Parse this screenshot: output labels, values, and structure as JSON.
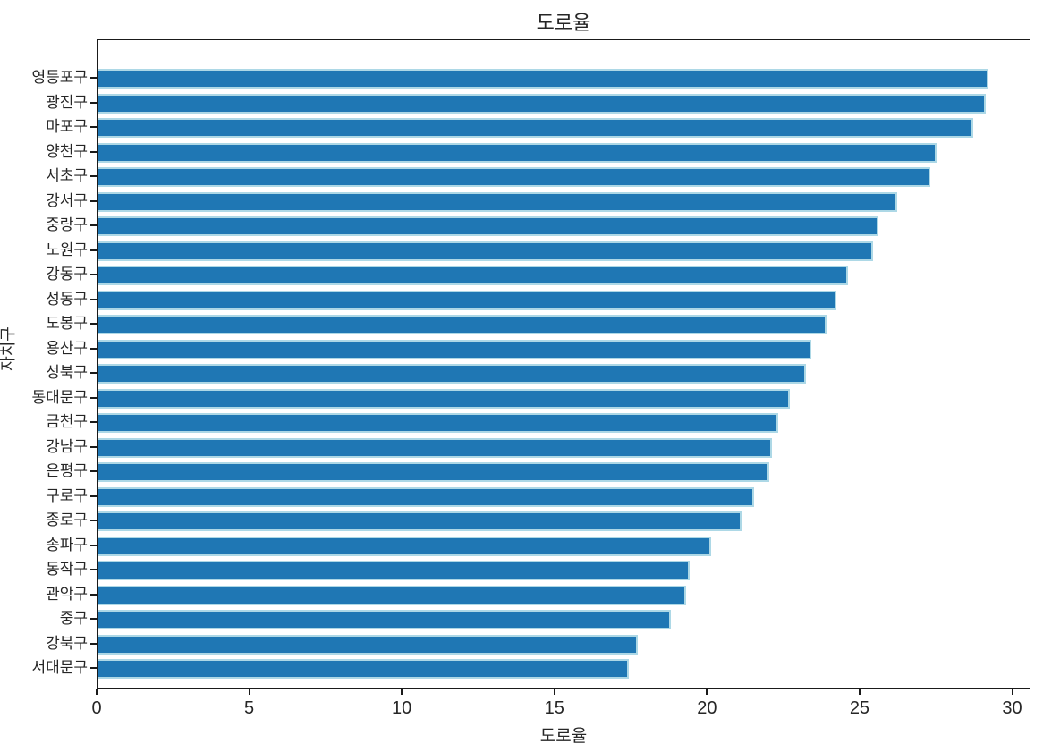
{
  "chart_data": {
    "type": "bar",
    "orientation": "horizontal",
    "title": "도로율",
    "xlabel": "도로율",
    "ylabel": "자치구",
    "xlim": [
      0,
      30.6
    ],
    "xticks": [
      0,
      5,
      10,
      15,
      20,
      25,
      30
    ],
    "grid": false,
    "legend": null,
    "bar_color": "#1f77b4",
    "bar_edge_color": "#add8e6",
    "categories": [
      "영등포구",
      "광진구",
      "마포구",
      "양천구",
      "서초구",
      "강서구",
      "중랑구",
      "노원구",
      "강동구",
      "성동구",
      "도봉구",
      "용산구",
      "성북구",
      "동대문구",
      "금천구",
      "강남구",
      "은평구",
      "구로구",
      "종로구",
      "송파구",
      "동작구",
      "관악구",
      "중구",
      "강북구",
      "서대문구"
    ],
    "values": [
      29.2,
      29.1,
      28.7,
      27.5,
      27.3,
      26.2,
      25.6,
      25.4,
      24.6,
      24.2,
      23.9,
      23.4,
      23.2,
      22.7,
      22.3,
      22.1,
      22.0,
      21.5,
      21.1,
      20.1,
      19.4,
      19.3,
      18.8,
      17.7,
      17.4
    ]
  }
}
